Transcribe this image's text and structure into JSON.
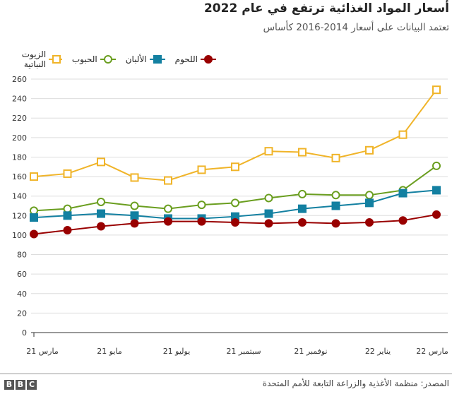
{
  "title": "أسعار المواد الغذائية ترتفع في عام 2022",
  "subtitle": "تعتمد البيانات على أسعار 2014-2016 كأساس",
  "source": "المصدر: منظمة الأغذية والزراعة التابعة للأمم المتحدة",
  "logo": "BBC",
  "chart_data": {
    "type": "line",
    "title": "أسعار المواد الغذائية ترتفع في عام 2022",
    "ylim": [
      0,
      260
    ],
    "yticks": [
      0,
      20,
      40,
      60,
      80,
      100,
      120,
      140,
      160,
      180,
      200,
      220,
      240,
      260
    ],
    "grid": true,
    "legend_position": "top",
    "x": [
      "2021-03",
      "2021-04",
      "2021-05",
      "2021-06",
      "2021-07",
      "2021-08",
      "2021-09",
      "2021-10",
      "2021-11",
      "2021-12",
      "2022-01",
      "2022-02",
      "2022-03"
    ],
    "xtick_labels": [
      "مارس 21",
      "مايو 21",
      "يوليو 21",
      "سبتمبر 21",
      "نوفمبر 21",
      "يناير 22",
      "مارس 22"
    ],
    "xtick_indices": [
      0,
      2,
      4,
      6,
      8,
      10,
      12
    ],
    "series": [
      {
        "name": "الزيوت النباتية",
        "color": "#f0b429",
        "marker": "open-square",
        "values": [
          160,
          163,
          175,
          159,
          156,
          167,
          170,
          186,
          185,
          179,
          187,
          203,
          249
        ]
      },
      {
        "name": "الحبوب",
        "color": "#6a9e1f",
        "marker": "open-circle",
        "values": [
          125,
          127,
          134,
          130,
          127,
          131,
          133,
          138,
          142,
          141,
          141,
          146,
          171
        ]
      },
      {
        "name": "الألبان",
        "color": "#1380a1",
        "marker": "filled-square",
        "values": [
          118,
          120,
          122,
          120,
          117,
          117,
          119,
          122,
          127,
          130,
          133,
          143,
          146
        ]
      },
      {
        "name": "اللحوم",
        "color": "#990000",
        "marker": "filled-circle",
        "values": [
          101,
          105,
          109,
          112,
          114,
          114,
          113,
          112,
          113,
          112,
          113,
          115,
          121
        ]
      }
    ]
  }
}
